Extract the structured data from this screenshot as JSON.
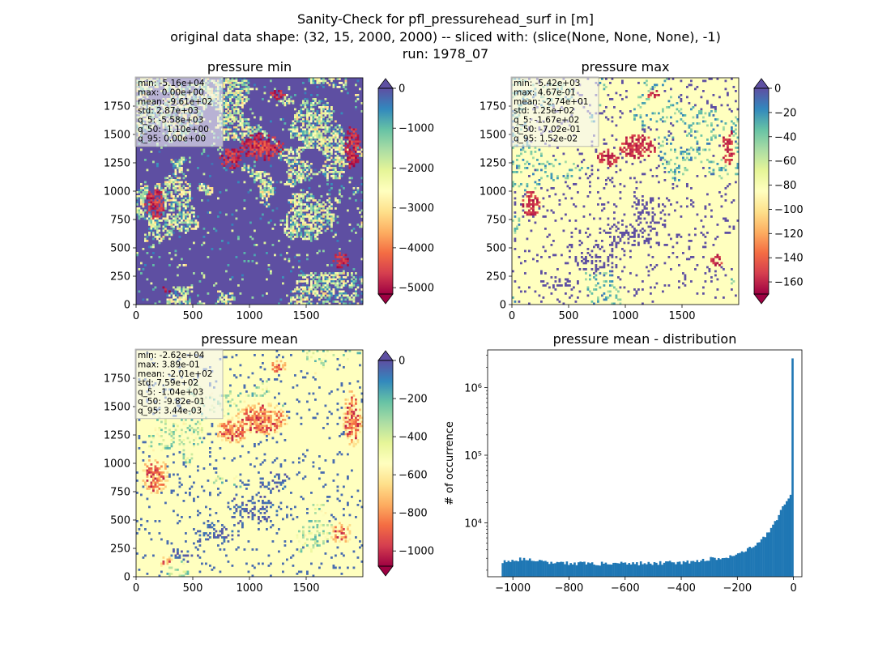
{
  "figure": {
    "title_lines": [
      "Sanity-Check for pfl_pressurehead_surf in [m]",
      "original data shape: (32, 15, 2000, 2000) -- sliced with: (slice(None, None, None), -1)",
      "run: 1978_07"
    ]
  },
  "chart_data": [
    {
      "type": "heatmap",
      "title": "pressure min",
      "xlim": [
        0,
        2000
      ],
      "ylim": [
        0,
        2000
      ],
      "x_ticks": [
        "0",
        "500",
        "1000",
        "1500"
      ],
      "y_ticks": [
        "0",
        "250",
        "500",
        "750",
        "1000",
        "1250",
        "1500",
        "1750"
      ],
      "colormap": "Spectral",
      "colorbar_range": [
        -5160,
        0
      ],
      "colorbar_extend": "both",
      "colorbar_ticks": [
        "0",
        "−1000",
        "−2000",
        "−3000",
        "−4000",
        "−5000"
      ],
      "colorbar_tick_values": [
        0,
        -1000,
        -2000,
        -3000,
        -4000,
        -5000
      ],
      "stats": [
        "min: -5.16e+04",
        "max: 0.00e+00",
        "mean: -9.61e+02",
        "std: 2.87e+03",
        "q_5: -5.58e+03",
        "q_50: -1.10e+00",
        "q_95: 0.00e+00"
      ],
      "dominant_color": "#5e4fa2"
    },
    {
      "type": "heatmap",
      "title": "pressure max",
      "xlim": [
        0,
        2000
      ],
      "ylim": [
        0,
        2000
      ],
      "x_ticks": [
        "0",
        "500",
        "1000",
        "1500"
      ],
      "y_ticks": [
        "0",
        "250",
        "500",
        "750",
        "1000",
        "1250",
        "1500",
        "1750"
      ],
      "colormap": "Spectral",
      "colorbar_range": [
        -170,
        0
      ],
      "colorbar_extend": "both",
      "colorbar_ticks": [
        "0",
        "−20",
        "−40",
        "−60",
        "−80",
        "−100",
        "−120",
        "−140",
        "−160"
      ],
      "colorbar_tick_values": [
        0,
        -20,
        -40,
        -60,
        -80,
        -100,
        -120,
        -140,
        -160
      ],
      "stats": [
        "min: -5.42e+03",
        "max: 4.67e-01",
        "mean: -2.74e+01",
        "std: 1.25e+02",
        "q_5: -1.67e+02",
        "q_50: -7.02e-01",
        "q_95: 1.52e-02"
      ],
      "dominant_color": "#ffffbf"
    },
    {
      "type": "heatmap",
      "title": "pressure mean",
      "xlim": [
        0,
        2000
      ],
      "ylim": [
        0,
        2000
      ],
      "x_ticks": [
        "0",
        "500",
        "1000",
        "1500"
      ],
      "y_ticks": [
        "0",
        "250",
        "500",
        "750",
        "1000",
        "1250",
        "1500",
        "1750"
      ],
      "colormap": "Spectral",
      "colorbar_range": [
        -1080,
        0
      ],
      "colorbar_extend": "both",
      "colorbar_ticks": [
        "0",
        "−200",
        "−400",
        "−600",
        "−800",
        "−1000"
      ],
      "colorbar_tick_values": [
        0,
        -200,
        -400,
        -600,
        -800,
        -1000
      ],
      "stats": [
        "min: -2.62e+04",
        "max: 3.89e-01",
        "mean: -2.01e+02",
        "std: 7.59e+02",
        "q_5: -1.04e+03",
        "q_50: -9.82e-01",
        "q_95: 3.44e-03"
      ],
      "dominant_color": "#ffffbf"
    },
    {
      "type": "bar",
      "title": "pressure mean - distribution",
      "ylabel": "# of occurrence",
      "xlabel": "",
      "x_ticks": [
        "−1000",
        "−800",
        "−600",
        "−400",
        "−200",
        "0"
      ],
      "x_tick_values": [
        -1000,
        -800,
        -600,
        -400,
        -200,
        0
      ],
      "xlim": [
        -1090,
        30
      ],
      "y_scale": "log",
      "ylim": [
        1600,
        3600000
      ],
      "y_ticks": [
        "10⁴",
        "10⁵",
        "10⁶"
      ],
      "y_tick_values": [
        10000,
        100000,
        1000000
      ],
      "bin_range": [
        -1040,
        0
      ],
      "bin_count": 150,
      "counts_description": [
        [
          -1040,
          2700
        ],
        [
          -1000,
          2800
        ],
        [
          -960,
          3000
        ],
        [
          -900,
          2700
        ],
        [
          -800,
          2500
        ],
        [
          -600,
          2500
        ],
        [
          -400,
          2600
        ],
        [
          -300,
          2900
        ],
        [
          -200,
          3400
        ],
        [
          -150,
          4300
        ],
        [
          -100,
          6500
        ],
        [
          -60,
          11000
        ],
        [
          -40,
          16000
        ],
        [
          -20,
          22000
        ],
        [
          -10,
          28000
        ],
        [
          -5,
          38000
        ],
        [
          0,
          2700000
        ]
      ],
      "bar_color": "#1f77b4"
    }
  ]
}
